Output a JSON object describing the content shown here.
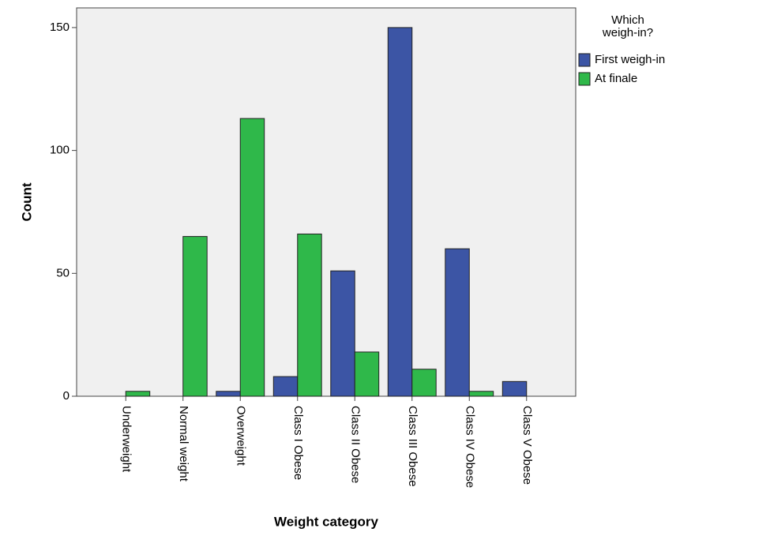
{
  "chart_data": {
    "type": "bar",
    "x_label": "Weight category",
    "y_label": "Count",
    "legend_title": "Which weigh-in?",
    "categories": [
      "Underweight",
      "Normal weight",
      "Overweight",
      "Class I Obese",
      "Class II Obese",
      "Class III Obese",
      "Class IV Obese",
      "Class V Obese"
    ],
    "series": [
      {
        "name": "First weigh-in",
        "color": "#3c55a5",
        "values": [
          0,
          0,
          2,
          8,
          51,
          150,
          60,
          6
        ]
      },
      {
        "name": "At finale",
        "color": "#2fb84a",
        "values": [
          2,
          65,
          113,
          66,
          18,
          11,
          2,
          0
        ]
      }
    ],
    "ylim": [
      0,
      158
    ],
    "yticks": [
      0,
      50,
      100,
      150
    ],
    "grid": false,
    "legend": "right"
  }
}
